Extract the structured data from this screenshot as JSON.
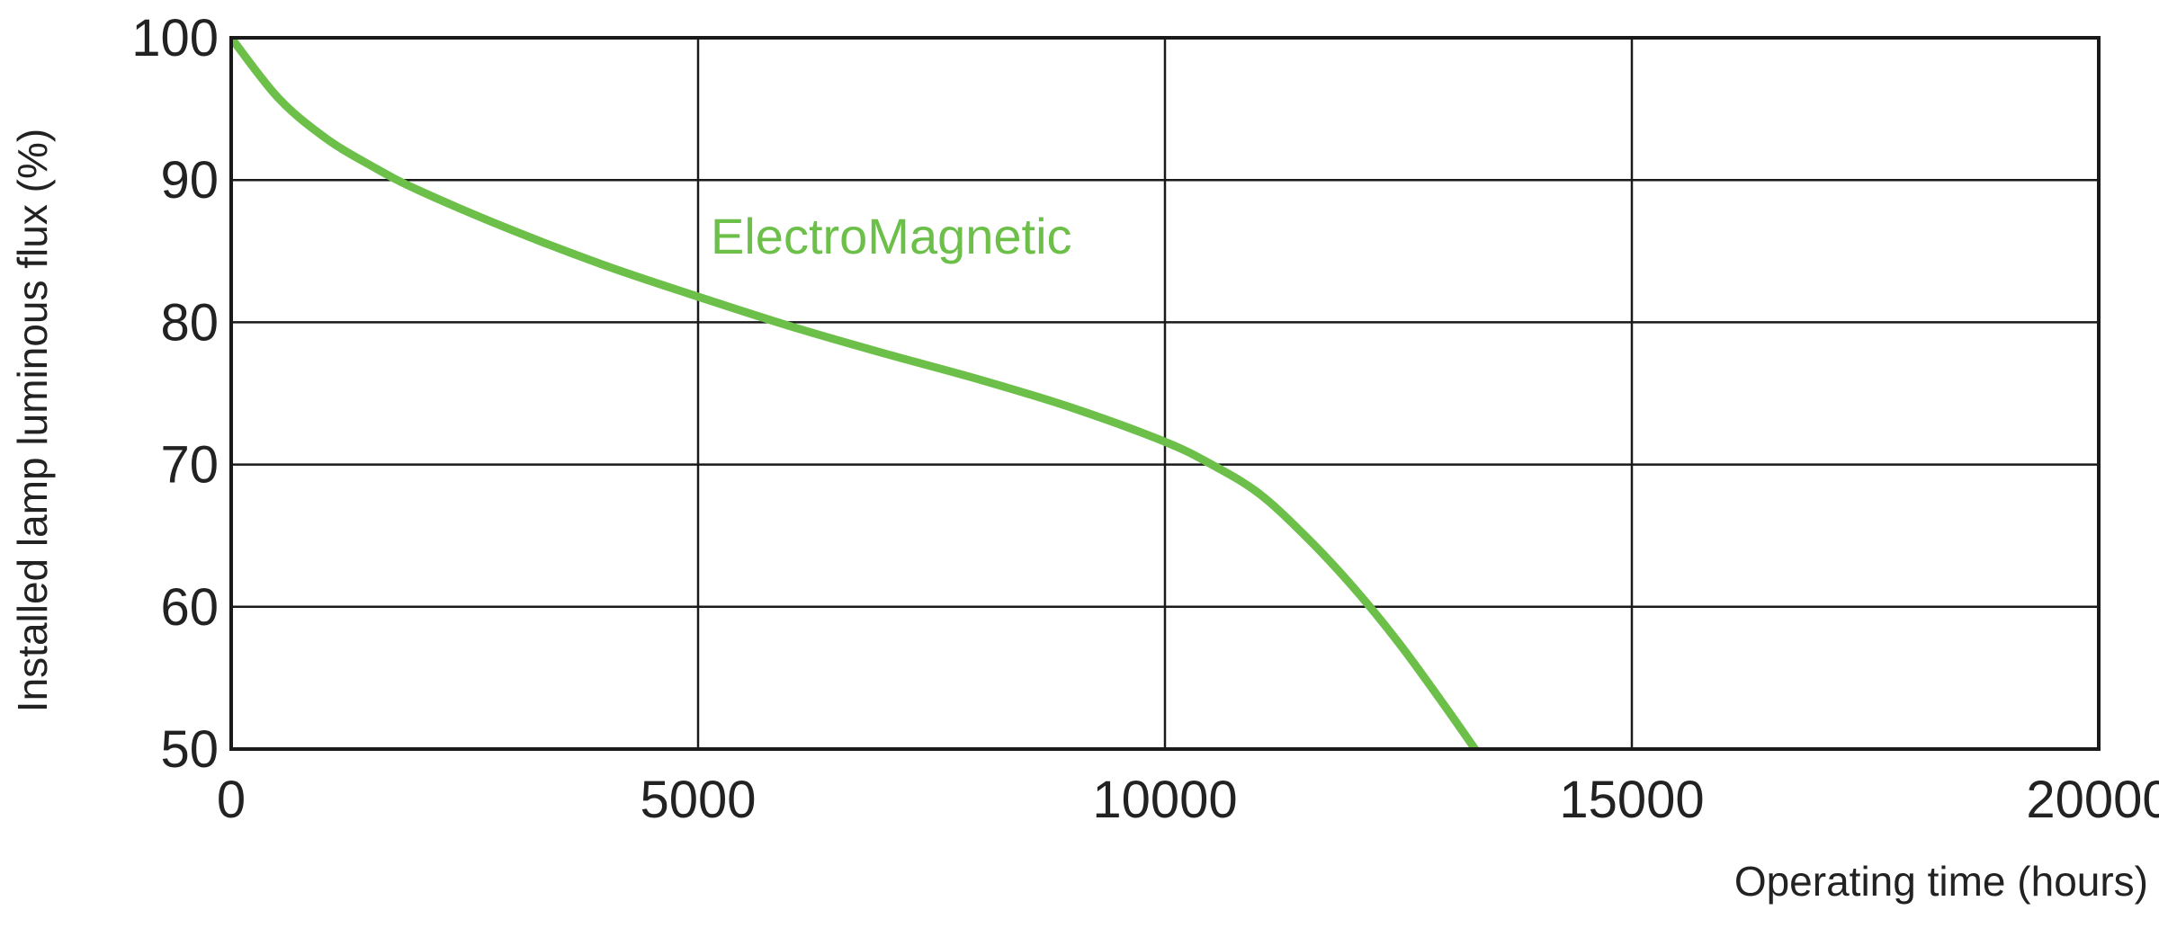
{
  "chart_data": {
    "type": "line",
    "title": "",
    "xlabel": "Operating time (hours)",
    "ylabel": "Installed lamp luminous flux (%)",
    "xlim": [
      0,
      20000
    ],
    "ylim": [
      50,
      100
    ],
    "x_ticks": [
      0,
      5000,
      10000,
      15000,
      20000
    ],
    "y_ticks": [
      50,
      60,
      70,
      80,
      90,
      100
    ],
    "x_tick_labels": [
      "0",
      "5000",
      "10000",
      "15000",
      "20000"
    ],
    "y_tick_labels": [
      "50",
      "60",
      "70",
      "80",
      "90",
      "100"
    ],
    "grid": true,
    "legend": "none",
    "series": [
      {
        "name": "ElectroMagnetic",
        "color": "#6cc04a",
        "x": [
          0,
          500,
          1000,
          1500,
          2000,
          3000,
          4000,
          5000,
          6000,
          7000,
          8000,
          9000,
          10000,
          10500,
          11000,
          11500,
          12000,
          12500,
          13000,
          13500
        ],
        "y": [
          100,
          95.8,
          93,
          91,
          89.3,
          86.5,
          84,
          81.8,
          79.7,
          77.8,
          76,
          74,
          71.6,
          70,
          68,
          65,
          61.5,
          57.5,
          53,
          48.3
        ]
      }
    ]
  }
}
